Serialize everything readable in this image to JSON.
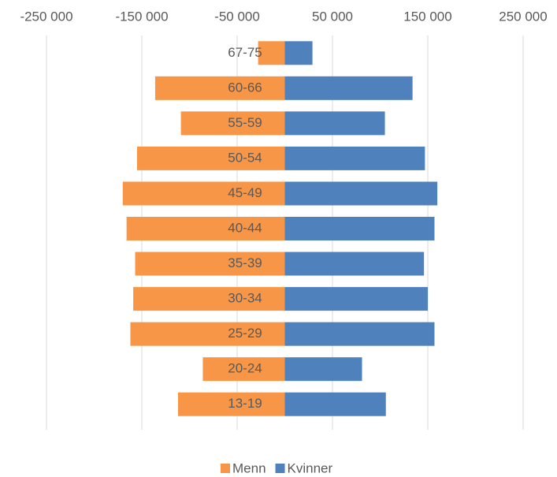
{
  "chart_data": {
    "type": "bar",
    "orientation": "horizontal",
    "categories": [
      "67-75",
      "60-66",
      "55-59",
      "50-54",
      "45-49",
      "40-44",
      "35-39",
      "30-34",
      "25-29",
      "20-24",
      "13-19"
    ],
    "series": [
      {
        "name": "Menn",
        "color": "#f79646",
        "values": [
          -28000,
          -136000,
          -109000,
          -155000,
          -170000,
          -166000,
          -157000,
          -159000,
          -162000,
          -86000,
          -112000
        ]
      },
      {
        "name": "Kvinner",
        "color": "#4f81bd",
        "values": [
          29000,
          134000,
          105000,
          147000,
          160000,
          157000,
          146000,
          150000,
          157000,
          81000,
          106000
        ]
      }
    ],
    "xlim": [
      -250000,
      250000
    ],
    "xticks": [
      {
        "value": -250000,
        "label": "-250 000"
      },
      {
        "value": -150000,
        "label": "-150 000"
      },
      {
        "value": -50000,
        "label": "-50 000"
      },
      {
        "value": 50000,
        "label": "50 000"
      },
      {
        "value": 150000,
        "label": "150 000"
      },
      {
        "value": 250000,
        "label": "250 000"
      }
    ],
    "grid": true,
    "legend": "bottom"
  }
}
